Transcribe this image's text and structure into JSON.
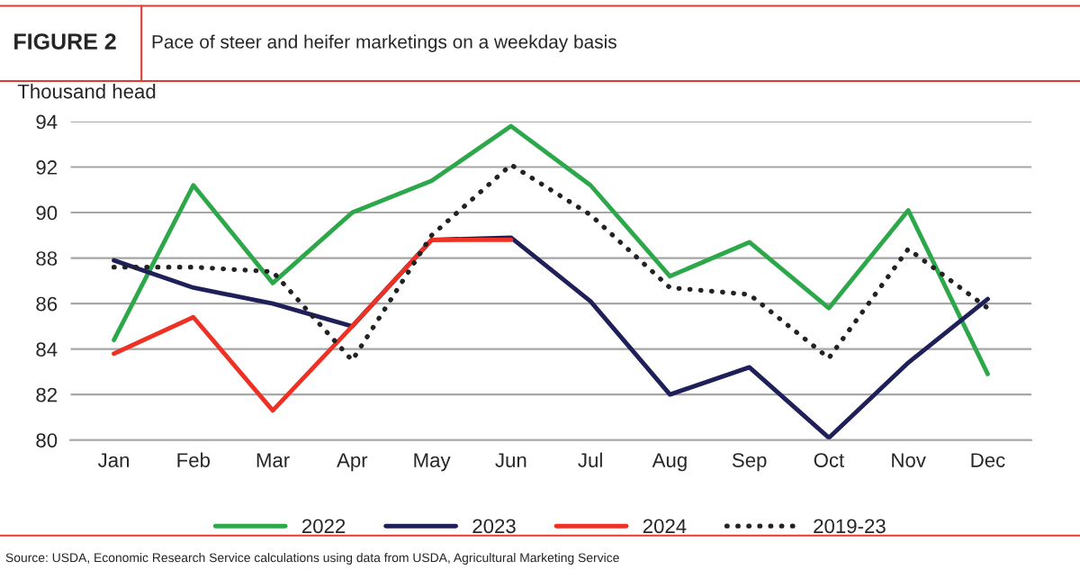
{
  "chart_data": {
    "type": "line",
    "title": "FIGURE 2",
    "subtitle": "Pace of steer and heifer marketings on a weekday basis",
    "ylabel": "Thousand head",
    "categories": [
      "Jan",
      "Feb",
      "Mar",
      "Apr",
      "May",
      "Jun",
      "Jul",
      "Aug",
      "Sep",
      "Oct",
      "Nov",
      "Dec"
    ],
    "series": [
      {
        "name": "2022",
        "color": "#2ca84a",
        "values": [
          84.4,
          91.2,
          86.9,
          90.0,
          91.4,
          93.8,
          91.2,
          87.2,
          88.7,
          85.8,
          90.1,
          82.9
        ]
      },
      {
        "name": "2023",
        "color": "#1f1f5a",
        "values": [
          87.9,
          86.7,
          86.0,
          85.0,
          88.8,
          88.9,
          86.1,
          82.0,
          83.2,
          80.1,
          83.4,
          86.2
        ]
      },
      {
        "name": "2024",
        "color": "#ee3124",
        "values": [
          83.8,
          85.4,
          81.3,
          85.0,
          88.8,
          88.8,
          null,
          null,
          null,
          null,
          null,
          null
        ]
      },
      {
        "name": "2019-23",
        "color": "#222222",
        "line_style": "dotted",
        "values": [
          87.6,
          87.6,
          87.4,
          83.5,
          89.0,
          92.1,
          89.9,
          86.7,
          86.4,
          83.6,
          88.4,
          85.8
        ]
      }
    ],
    "ylim": [
      80,
      94
    ],
    "yticks": [
      80,
      82,
      84,
      86,
      88,
      90,
      92,
      94
    ],
    "grid": "y",
    "legend": "bottom",
    "annotations": [
      "Source: USDA, Economic Research Service calculations using data from USDA, Agricultural Marketing Service"
    ]
  }
}
